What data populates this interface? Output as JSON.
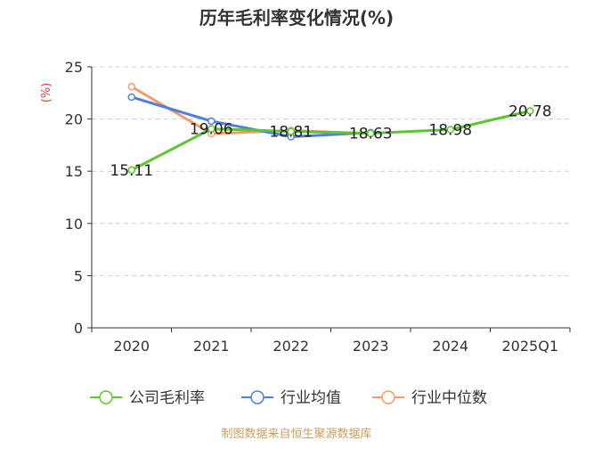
{
  "chart_data": {
    "type": "line",
    "title": "历年毛利率变化情况(%)",
    "unit": "(%)",
    "categories": [
      "2020",
      "2021",
      "2022",
      "2023",
      "2024",
      "2025Q1"
    ],
    "ylim": [
      0,
      25
    ],
    "yticks": [
      0,
      5,
      10,
      15,
      20,
      25
    ],
    "grid": true,
    "legend_position": "bottom",
    "series": [
      {
        "name": "公司毛利率",
        "color": "#5cc62f",
        "values": [
          15.11,
          19.06,
          18.81,
          18.63,
          18.98,
          20.78
        ],
        "labels": [
          "15.11",
          "19.06",
          "18.81",
          "18.63",
          "18.98",
          "20.78"
        ]
      },
      {
        "name": "行业均值",
        "color": "#4f7fdc",
        "values": [
          22.1,
          19.8,
          18.3,
          18.7,
          null,
          null
        ]
      },
      {
        "name": "行业中位数",
        "color": "#f49a6c",
        "values": [
          23.1,
          18.6,
          18.9,
          18.6,
          null,
          null
        ]
      }
    ],
    "source": "制图数据来自恒生聚源数据库"
  }
}
